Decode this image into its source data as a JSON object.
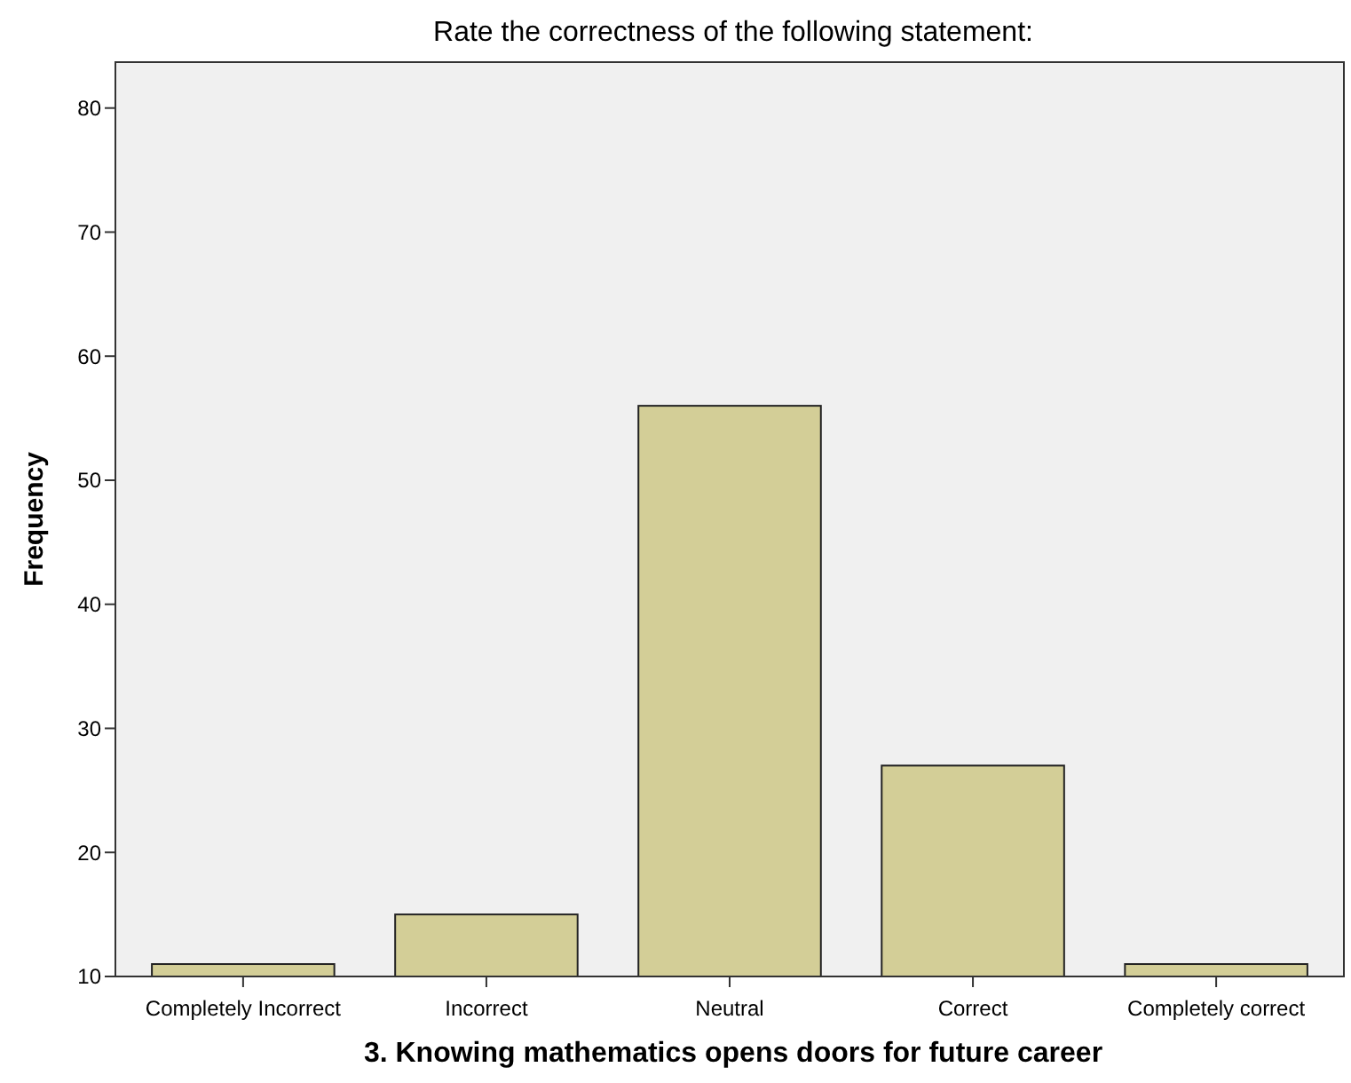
{
  "chart_data": {
    "type": "bar",
    "title": "Rate the correctness of the following statement:",
    "xlabel": "3. Knowing mathematics opens doors for future career",
    "ylabel": "Frequency",
    "categories": [
      "Completely Incorrect",
      "Incorrect",
      "Neutral",
      "Correct",
      "Completely correct"
    ],
    "values": [
      11,
      15,
      56,
      27,
      11
    ],
    "color": "#d3ce97",
    "ylim": [
      10,
      83.7
    ],
    "yticks": [
      10,
      20,
      30,
      40,
      50,
      60,
      70,
      80
    ],
    "grid": false
  }
}
